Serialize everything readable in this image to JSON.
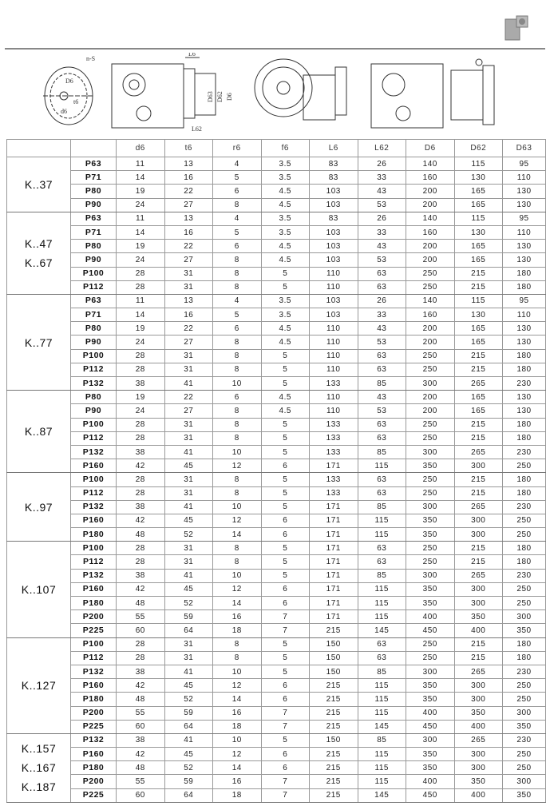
{
  "drawing": {
    "labels": {
      "ns": "n-S",
      "D6": "D6",
      "t6": "t6",
      "d6": "d6",
      "L6": "L6",
      "L62": "L62",
      "D63": "D63",
      "D62": "D62",
      "D6b": "D6"
    }
  },
  "table": {
    "columns": [
      "",
      "",
      "d6",
      "t6",
      "r6",
      "f6",
      "L6",
      "L62",
      "D6",
      "D62",
      "D63"
    ],
    "groups": [
      {
        "labels": [
          "K..37"
        ],
        "rows": [
          [
            "P63",
            "11",
            "13",
            "4",
            "3.5",
            "83",
            "26",
            "140",
            "115",
            "95"
          ],
          [
            "P71",
            "14",
            "16",
            "5",
            "3.5",
            "83",
            "33",
            "160",
            "130",
            "110"
          ],
          [
            "P80",
            "19",
            "22",
            "6",
            "4.5",
            "103",
            "43",
            "200",
            "165",
            "130"
          ],
          [
            "P90",
            "24",
            "27",
            "8",
            "4.5",
            "103",
            "53",
            "200",
            "165",
            "130"
          ]
        ]
      },
      {
        "labels": [
          "K..47",
          "K..67"
        ],
        "rows": [
          [
            "P63",
            "11",
            "13",
            "4",
            "3.5",
            "83",
            "26",
            "140",
            "115",
            "95"
          ],
          [
            "P71",
            "14",
            "16",
            "5",
            "3.5",
            "103",
            "33",
            "160",
            "130",
            "110"
          ],
          [
            "P80",
            "19",
            "22",
            "6",
            "4.5",
            "103",
            "43",
            "200",
            "165",
            "130"
          ],
          [
            "P90",
            "24",
            "27",
            "8",
            "4.5",
            "103",
            "53",
            "200",
            "165",
            "130"
          ],
          [
            "P100",
            "28",
            "31",
            "8",
            "5",
            "110",
            "63",
            "250",
            "215",
            "180"
          ],
          [
            "P112",
            "28",
            "31",
            "8",
            "5",
            "110",
            "63",
            "250",
            "215",
            "180"
          ]
        ]
      },
      {
        "labels": [
          "K..77"
        ],
        "rows": [
          [
            "P63",
            "11",
            "13",
            "4",
            "3.5",
            "103",
            "26",
            "140",
            "115",
            "95"
          ],
          [
            "P71",
            "14",
            "16",
            "5",
            "3.5",
            "103",
            "33",
            "160",
            "130",
            "110"
          ],
          [
            "P80",
            "19",
            "22",
            "6",
            "4.5",
            "110",
            "43",
            "200",
            "165",
            "130"
          ],
          [
            "P90",
            "24",
            "27",
            "8",
            "4.5",
            "110",
            "53",
            "200",
            "165",
            "130"
          ],
          [
            "P100",
            "28",
            "31",
            "8",
            "5",
            "110",
            "63",
            "250",
            "215",
            "180"
          ],
          [
            "P112",
            "28",
            "31",
            "8",
            "5",
            "110",
            "63",
            "250",
            "215",
            "180"
          ],
          [
            "P132",
            "38",
            "41",
            "10",
            "5",
            "133",
            "85",
            "300",
            "265",
            "230"
          ]
        ]
      },
      {
        "labels": [
          "K..87"
        ],
        "rows": [
          [
            "P80",
            "19",
            "22",
            "6",
            "4.5",
            "110",
            "43",
            "200",
            "165",
            "130"
          ],
          [
            "P90",
            "24",
            "27",
            "8",
            "4.5",
            "110",
            "53",
            "200",
            "165",
            "130"
          ],
          [
            "P100",
            "28",
            "31",
            "8",
            "5",
            "133",
            "63",
            "250",
            "215",
            "180"
          ],
          [
            "P112",
            "28",
            "31",
            "8",
            "5",
            "133",
            "63",
            "250",
            "215",
            "180"
          ],
          [
            "P132",
            "38",
            "41",
            "10",
            "5",
            "133",
            "85",
            "300",
            "265",
            "230"
          ],
          [
            "P160",
            "42",
            "45",
            "12",
            "6",
            "171",
            "115",
            "350",
            "300",
            "250"
          ]
        ]
      },
      {
        "labels": [
          "K..97"
        ],
        "rows": [
          [
            "P100",
            "28",
            "31",
            "8",
            "5",
            "133",
            "63",
            "250",
            "215",
            "180"
          ],
          [
            "P112",
            "28",
            "31",
            "8",
            "5",
            "133",
            "63",
            "250",
            "215",
            "180"
          ],
          [
            "P132",
            "38",
            "41",
            "10",
            "5",
            "171",
            "85",
            "300",
            "265",
            "230"
          ],
          [
            "P160",
            "42",
            "45",
            "12",
            "6",
            "171",
            "115",
            "350",
            "300",
            "250"
          ],
          [
            "P180",
            "48",
            "52",
            "14",
            "6",
            "171",
            "115",
            "350",
            "300",
            "250"
          ]
        ]
      },
      {
        "labels": [
          "K..107"
        ],
        "rows": [
          [
            "P100",
            "28",
            "31",
            "8",
            "5",
            "171",
            "63",
            "250",
            "215",
            "180"
          ],
          [
            "P112",
            "28",
            "31",
            "8",
            "5",
            "171",
            "63",
            "250",
            "215",
            "180"
          ],
          [
            "P132",
            "38",
            "41",
            "10",
            "5",
            "171",
            "85",
            "300",
            "265",
            "230"
          ],
          [
            "P160",
            "42",
            "45",
            "12",
            "6",
            "171",
            "115",
            "350",
            "300",
            "250"
          ],
          [
            "P180",
            "48",
            "52",
            "14",
            "6",
            "171",
            "115",
            "350",
            "300",
            "250"
          ],
          [
            "P200",
            "55",
            "59",
            "16",
            "7",
            "171",
            "115",
            "400",
            "350",
            "300"
          ],
          [
            "P225",
            "60",
            "64",
            "18",
            "7",
            "215",
            "145",
            "450",
            "400",
            "350"
          ]
        ]
      },
      {
        "labels": [
          "K..127"
        ],
        "rows": [
          [
            "P100",
            "28",
            "31",
            "8",
            "5",
            "150",
            "63",
            "250",
            "215",
            "180"
          ],
          [
            "P112",
            "28",
            "31",
            "8",
            "5",
            "150",
            "63",
            "250",
            "215",
            "180"
          ],
          [
            "P132",
            "38",
            "41",
            "10",
            "5",
            "150",
            "85",
            "300",
            "265",
            "230"
          ],
          [
            "P160",
            "42",
            "45",
            "12",
            "6",
            "215",
            "115",
            "350",
            "300",
            "250"
          ],
          [
            "P180",
            "48",
            "52",
            "14",
            "6",
            "215",
            "115",
            "350",
            "300",
            "250"
          ],
          [
            "P200",
            "55",
            "59",
            "16",
            "7",
            "215",
            "115",
            "400",
            "350",
            "300"
          ],
          [
            "P225",
            "60",
            "64",
            "18",
            "7",
            "215",
            "145",
            "450",
            "400",
            "350"
          ]
        ]
      },
      {
        "labels": [
          "K..157",
          "K..167",
          "K..187"
        ],
        "rows": [
          [
            "P132",
            "38",
            "41",
            "10",
            "5",
            "150",
            "85",
            "300",
            "265",
            "230"
          ],
          [
            "P160",
            "42",
            "45",
            "12",
            "6",
            "215",
            "115",
            "350",
            "300",
            "250"
          ],
          [
            "P180",
            "48",
            "52",
            "14",
            "6",
            "215",
            "115",
            "350",
            "300",
            "250"
          ],
          [
            "P200",
            "55",
            "59",
            "16",
            "7",
            "215",
            "115",
            "400",
            "350",
            "300"
          ],
          [
            "P225",
            "60",
            "64",
            "18",
            "7",
            "215",
            "145",
            "450",
            "400",
            "350"
          ]
        ]
      }
    ]
  }
}
